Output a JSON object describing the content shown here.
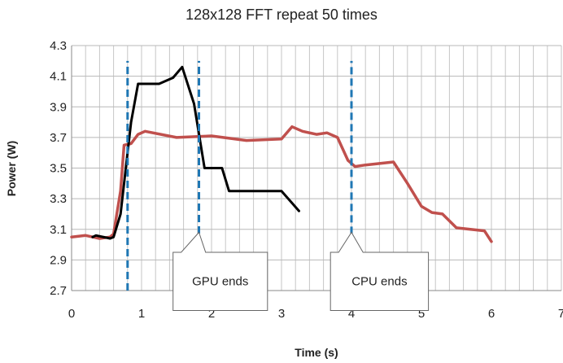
{
  "chart_data": {
    "type": "line",
    "title": "128x128 FFT repeat 50 times",
    "xlabel": "Time (s)",
    "ylabel": "Power (W)",
    "xlim": [
      0,
      7
    ],
    "ylim": [
      2.7,
      4.3
    ],
    "x_ticks": [
      "0",
      "1",
      "2",
      "3",
      "4",
      "5",
      "6",
      "7"
    ],
    "y_ticks": [
      "2.7",
      "2.9",
      "3.1",
      "3.3",
      "3.5",
      "3.7",
      "3.9",
      "4.1",
      "4.3"
    ],
    "grid": true,
    "minor_x_step": 0.2,
    "colors": {
      "gpu_line": "#000000",
      "cpu_line": "#c0504d",
      "markers": "#1f77b4"
    },
    "series": [
      {
        "x": [
          0.3,
          0.35,
          0.55,
          0.6,
          0.7,
          0.75,
          0.85,
          0.95,
          1.25,
          1.45,
          1.58,
          1.75,
          1.9,
          2.0,
          2.15,
          2.25,
          2.5,
          2.75,
          3.0,
          3.25
        ],
        "y": [
          3.05,
          3.06,
          3.04,
          3.05,
          3.2,
          3.4,
          3.8,
          4.05,
          4.05,
          4.09,
          4.16,
          3.92,
          3.5,
          3.5,
          3.5,
          3.35,
          3.35,
          3.35,
          3.35,
          3.22
        ]
      },
      {
        "x": [
          0,
          0.2,
          0.4,
          0.55,
          0.6,
          0.7,
          0.75,
          0.85,
          0.95,
          1.05,
          1.5,
          2.0,
          2.5,
          3.0,
          3.15,
          3.3,
          3.5,
          3.65,
          3.8,
          3.95,
          4.05,
          4.2,
          4.4,
          4.6,
          4.8,
          5.0,
          5.15,
          5.3,
          5.5,
          5.7,
          5.9,
          6.0
        ],
        "y": [
          3.05,
          3.06,
          3.04,
          3.05,
          3.07,
          3.35,
          3.65,
          3.66,
          3.72,
          3.74,
          3.7,
          3.71,
          3.68,
          3.69,
          3.77,
          3.74,
          3.72,
          3.73,
          3.7,
          3.55,
          3.51,
          3.52,
          3.53,
          3.54,
          3.4,
          3.25,
          3.21,
          3.2,
          3.11,
          3.1,
          3.09,
          3.02
        ]
      }
    ],
    "markers": [
      {
        "x": 0.8,
        "y_from": 2.7,
        "y_to": 4.2
      },
      {
        "x": 1.82,
        "y_from": 2.7,
        "y_to": 4.2
      },
      {
        "x": 4.0,
        "y_from": 3.07,
        "y_to": 4.2
      }
    ],
    "annotations": [
      {
        "text": "GPU ends",
        "x_from": 1.45,
        "x_to": 2.8,
        "y_top": 2.95,
        "y_bottom": 2.57,
        "pointer_x": 1.82,
        "pointer_y": 3.08
      },
      {
        "text": "CPU ends",
        "x_from": 3.7,
        "x_to": 5.1,
        "y_top": 2.95,
        "y_bottom": 2.57,
        "pointer_x": 4.0,
        "pointer_y": 3.08
      }
    ]
  }
}
